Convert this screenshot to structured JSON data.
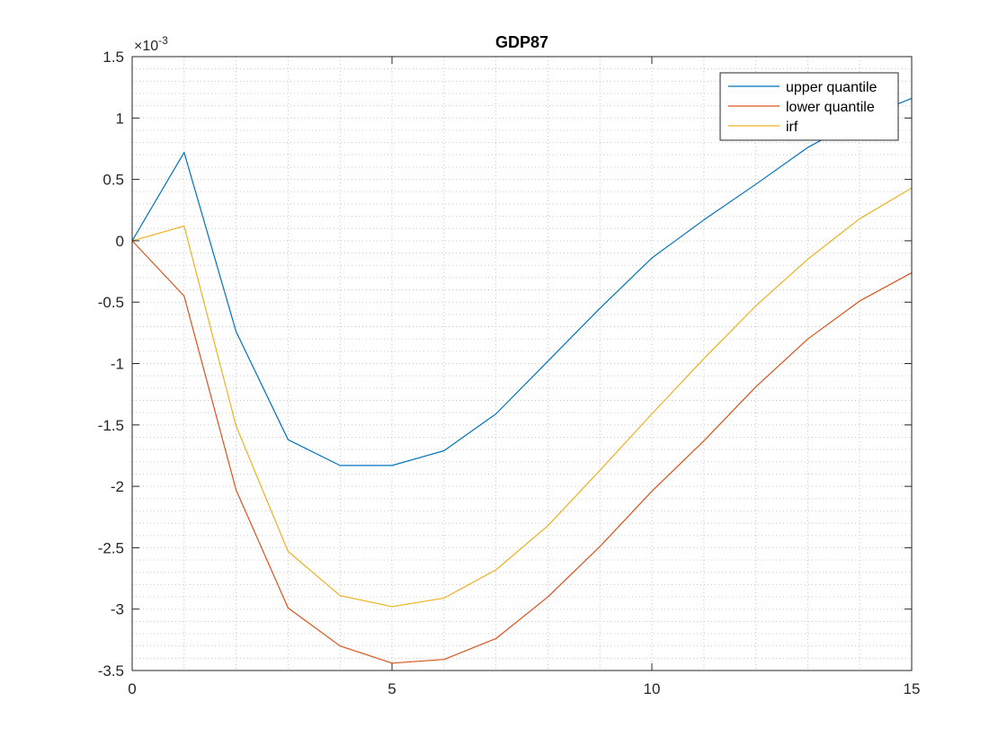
{
  "chart_data": {
    "type": "line",
    "title": "GDP87",
    "xlabel": "",
    "ylabel": "",
    "xlim": [
      0,
      15
    ],
    "ylim": [
      -3.5,
      1.5
    ],
    "y_scale_multiplier": "×10",
    "y_scale_exponent": "-3",
    "x_ticks": [
      0,
      5,
      10,
      15
    ],
    "y_ticks": [
      -3.5,
      -3,
      -2.5,
      -2,
      -1.5,
      -1,
      -0.5,
      0,
      0.5,
      1,
      1.5
    ],
    "x_tick_labels": [
      "0",
      "5",
      "10",
      "15"
    ],
    "y_tick_labels": [
      "-3.5",
      "-3",
      "-2.5",
      "-2",
      "-1.5",
      "-1",
      "-0.5",
      "0",
      "0.5",
      "1",
      "1.5"
    ],
    "grid": "minor dotted",
    "legend_position": "top-right",
    "x": [
      0,
      1,
      2,
      3,
      4,
      5,
      6,
      7,
      8,
      9,
      10,
      11,
      12,
      13,
      14,
      15
    ],
    "series": [
      {
        "name": "upper quantile",
        "color": "#0072bd",
        "values": [
          0,
          0.72,
          -0.74,
          -1.62,
          -1.83,
          -1.83,
          -1.71,
          -1.41,
          -0.98,
          -0.55,
          -0.14,
          0.17,
          0.46,
          0.76,
          0.99,
          1.16
        ]
      },
      {
        "name": "lower quantile",
        "color": "#d95319",
        "values": [
          0,
          -0.45,
          -2.03,
          -2.99,
          -3.3,
          -3.44,
          -3.41,
          -3.24,
          -2.9,
          -2.49,
          -2.04,
          -1.63,
          -1.19,
          -0.8,
          -0.49,
          -0.26
        ]
      },
      {
        "name": "irf",
        "color": "#edb120",
        "values": [
          0,
          0.12,
          -1.51,
          -2.53,
          -2.89,
          -2.98,
          -2.91,
          -2.68,
          -2.32,
          -1.87,
          -1.41,
          -0.96,
          -0.53,
          -0.15,
          0.18,
          0.43
        ]
      }
    ]
  }
}
